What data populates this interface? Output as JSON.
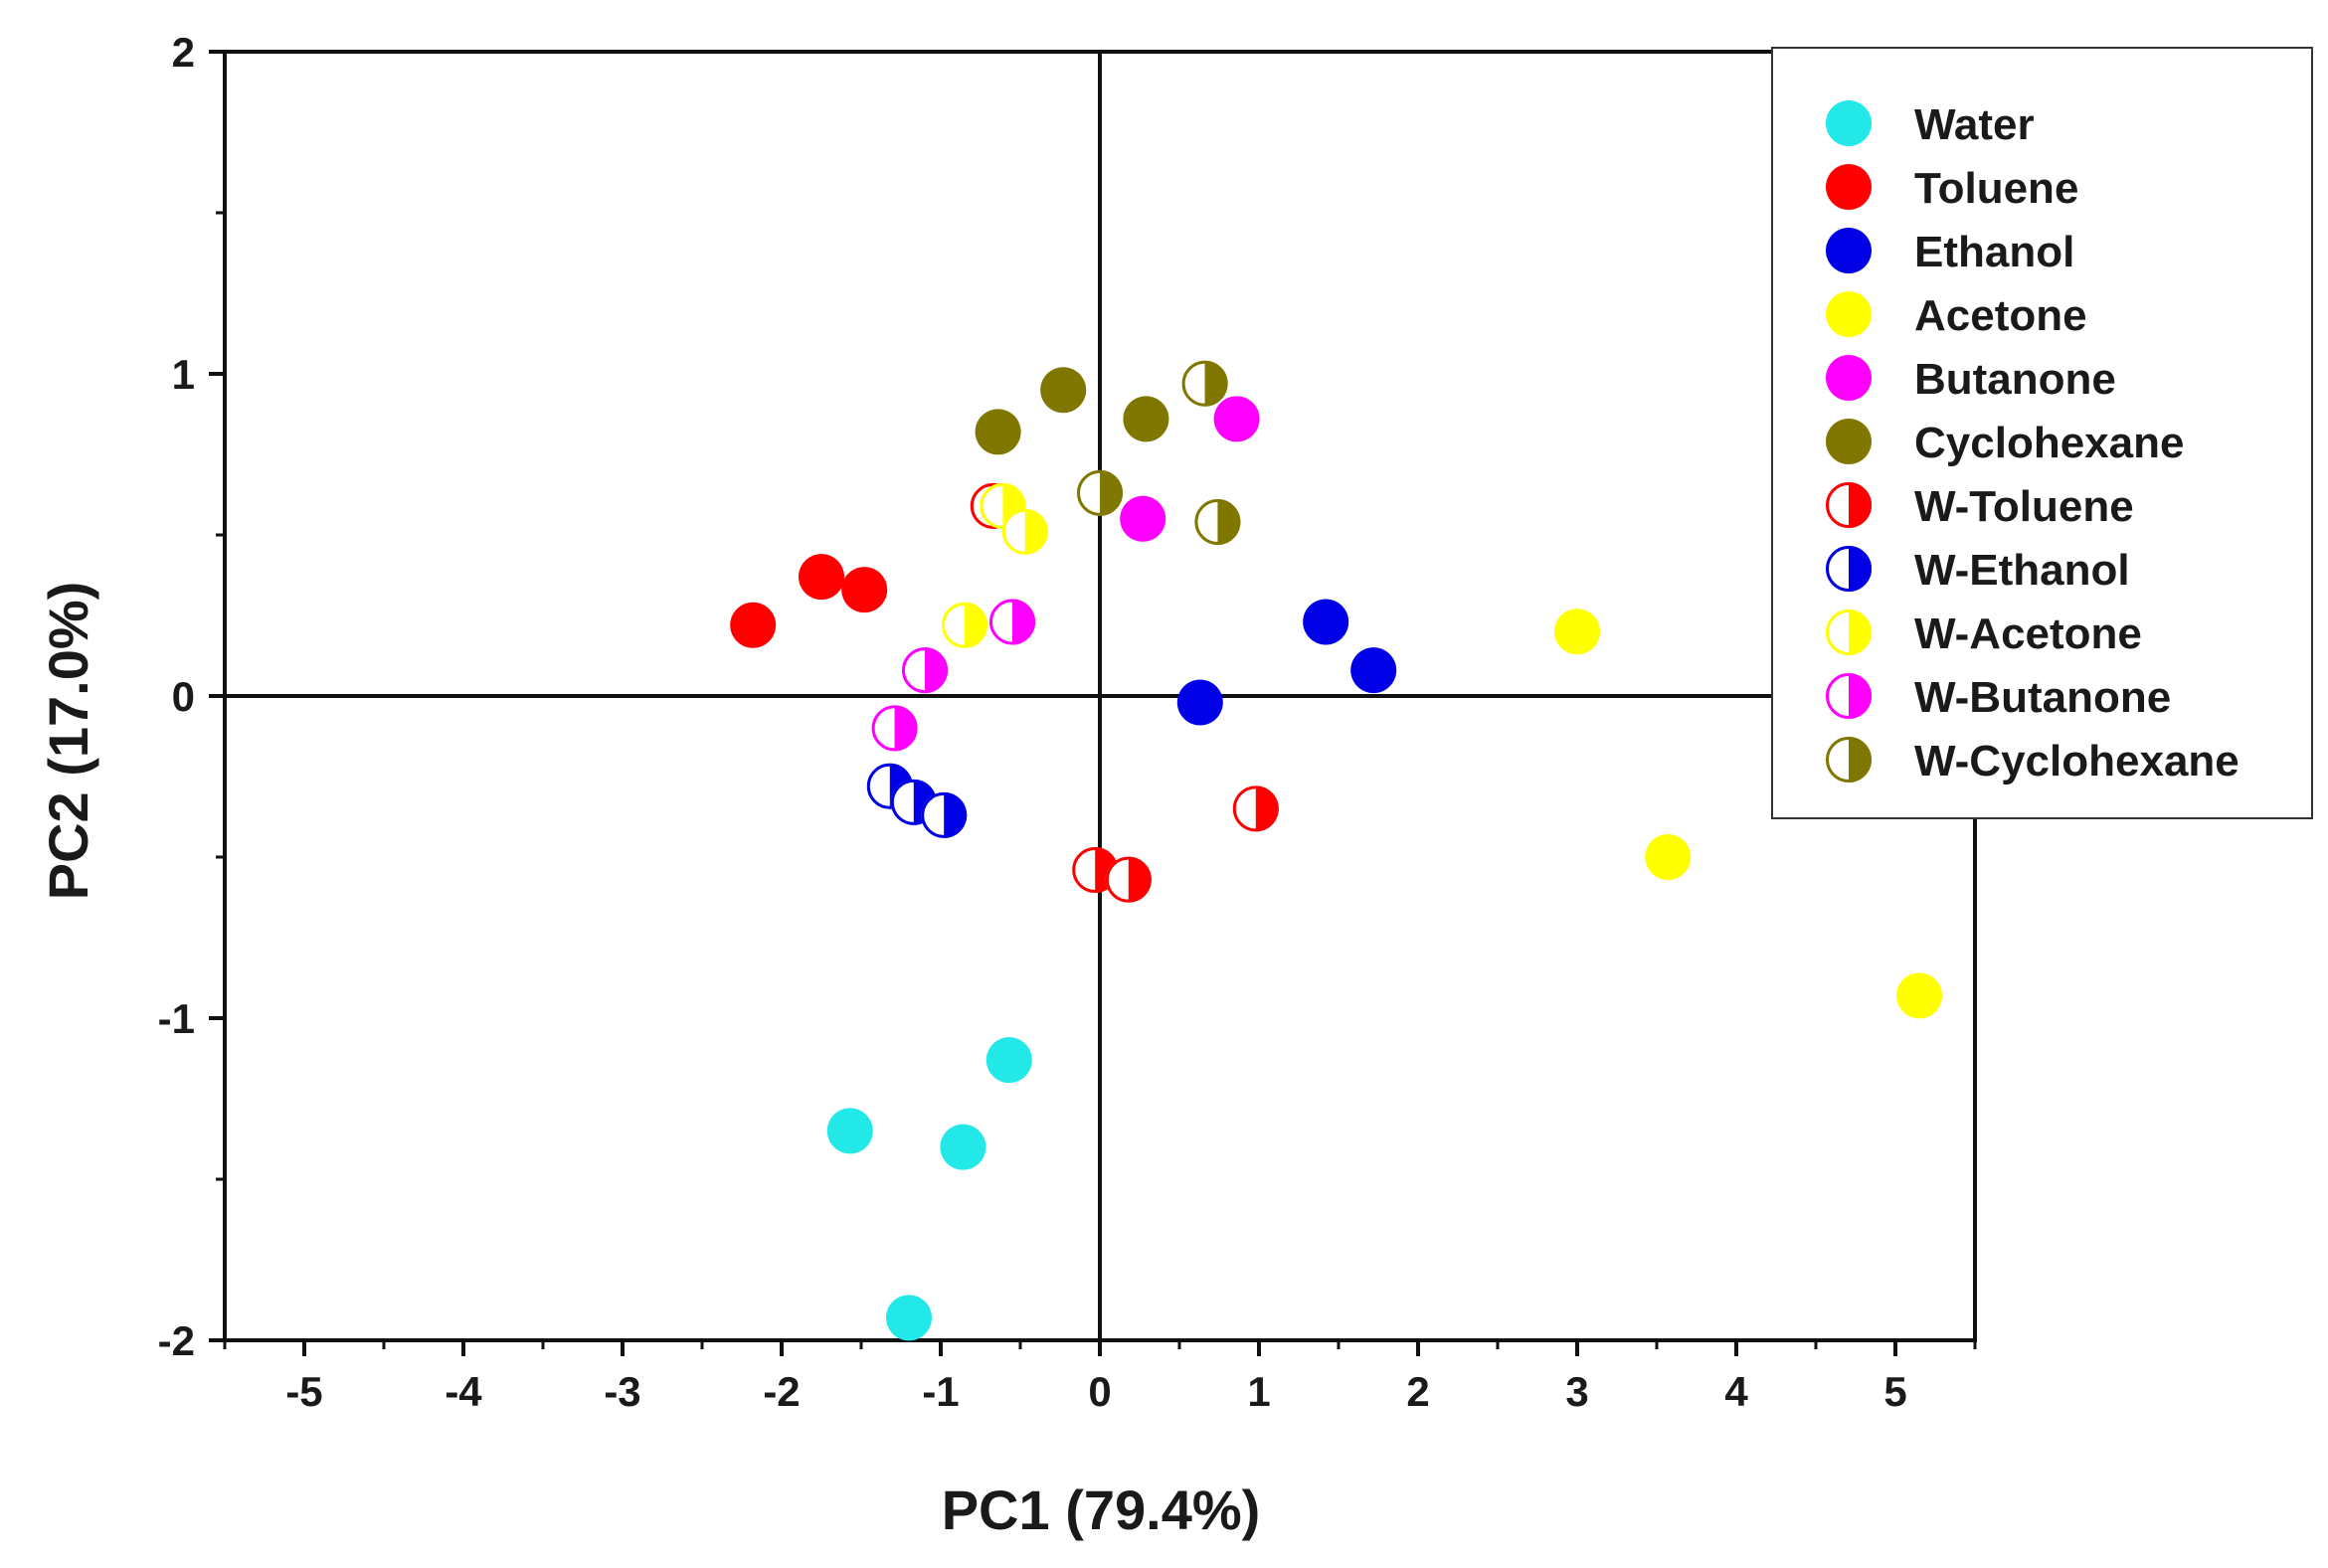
{
  "chart_data": {
    "type": "scatter",
    "title": "",
    "xlabel": "PC1 (79.4%)",
    "ylabel": "PC2 (17.0%)",
    "xlim": [
      -5.5,
      5.5
    ],
    "ylim": [
      -2,
      2
    ],
    "xticks": [
      -5,
      -4,
      -3,
      -2,
      -1,
      0,
      1,
      2,
      3,
      4,
      5
    ],
    "yticks": [
      -2,
      -1,
      0,
      1,
      2
    ],
    "x_tick_labels": [
      "-5",
      "-4",
      "-3",
      "-2",
      "-1",
      "0",
      "1",
      "2",
      "3",
      "4",
      "5"
    ],
    "y_tick_labels": [
      "-2",
      "-1",
      "0",
      "1",
      "2"
    ],
    "reference_lines": {
      "x": 0,
      "y": 0
    },
    "legend_position": "top-right",
    "series": [
      {
        "name": "Water",
        "color": "#22e8e8",
        "marker": "full",
        "points": [
          [
            -0.57,
            -1.13
          ],
          [
            -1.57,
            -1.35
          ],
          [
            -0.86,
            -1.4
          ],
          [
            -1.2,
            -1.93
          ]
        ]
      },
      {
        "name": "Toluene",
        "color": "#ff0000",
        "marker": "full",
        "points": [
          [
            -2.18,
            0.22
          ],
          [
            -1.75,
            0.37
          ],
          [
            -1.48,
            0.33
          ]
        ]
      },
      {
        "name": "Ethanol",
        "color": "#0000e6",
        "marker": "full",
        "points": [
          [
            1.42,
            0.23
          ],
          [
            1.72,
            0.08
          ],
          [
            0.63,
            -0.02
          ]
        ]
      },
      {
        "name": "Acetone",
        "color": "#ffff00",
        "marker": "full",
        "points": [
          [
            3.0,
            0.2
          ],
          [
            3.57,
            -0.5
          ],
          [
            5.15,
            -0.93
          ]
        ]
      },
      {
        "name": "Butanone",
        "color": "#ff00ff",
        "marker": "full",
        "points": [
          [
            0.86,
            0.86
          ],
          [
            0.27,
            0.55
          ]
        ]
      },
      {
        "name": "Cyclohexane",
        "color": "#7f7700",
        "marker": "full",
        "points": [
          [
            -0.64,
            0.82
          ],
          [
            -0.23,
            0.95
          ],
          [
            0.29,
            0.86
          ]
        ]
      },
      {
        "name": "W-Toluene",
        "color": "#ff0000",
        "marker": "half",
        "points": [
          [
            -0.67,
            0.59
          ],
          [
            0.98,
            -0.35
          ],
          [
            -0.03,
            -0.54
          ],
          [
            0.18,
            -0.57
          ]
        ]
      },
      {
        "name": "W-Ethanol",
        "color": "#0000e6",
        "marker": "half",
        "points": [
          [
            -1.32,
            -0.28
          ],
          [
            -1.17,
            -0.33
          ],
          [
            -0.98,
            -0.37
          ]
        ]
      },
      {
        "name": "W-Acetone",
        "color": "#ffff00",
        "marker": "half",
        "points": [
          [
            -0.61,
            0.59
          ],
          [
            -0.47,
            0.51
          ],
          [
            -0.85,
            0.22
          ]
        ]
      },
      {
        "name": "W-Butanone",
        "color": "#ff00ff",
        "marker": "half",
        "points": [
          [
            -0.55,
            0.23
          ],
          [
            -1.1,
            0.08
          ],
          [
            -1.29,
            -0.1
          ]
        ]
      },
      {
        "name": "W-Cyclohexane",
        "color": "#7f7700",
        "marker": "half",
        "points": [
          [
            0.66,
            0.97
          ],
          [
            0.0,
            0.63
          ],
          [
            0.74,
            0.54
          ]
        ]
      }
    ]
  }
}
